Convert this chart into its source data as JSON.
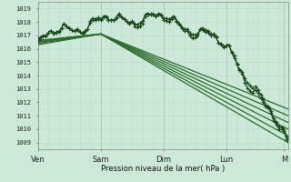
{
  "bg_color": "#cce8d8",
  "grid_color_major": "#aaccbb",
  "grid_color_minor": "#bbddcc",
  "line_color": "#2a6e2a",
  "line_color_dark": "#1a4a1a",
  "ylabel_ticks": [
    1009,
    1010,
    1011,
    1012,
    1013,
    1014,
    1015,
    1016,
    1017,
    1018,
    1019
  ],
  "xlabel": "Pression niveau de la mer( hPa )",
  "xtick_labels": [
    "Ven",
    "Sam",
    "Dim",
    "Lun",
    "M"
  ],
  "xtick_positions": [
    0,
    48,
    96,
    144,
    188
  ],
  "ymin": 1008.5,
  "ymax": 1019.5,
  "total_points": 192
}
